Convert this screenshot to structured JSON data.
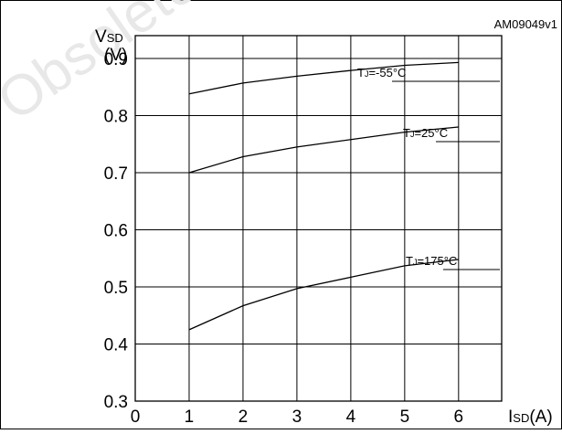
{
  "figure_id": "AM09049v1",
  "watermark": "Obsolete",
  "chart_data": {
    "type": "line",
    "ylabel_main": "V",
    "ylabel_sub": "SD",
    "ylabel_unit": "(V)",
    "xlabel_main": "I",
    "xlabel_sub": "SD",
    "xlabel_unit": "(A)",
    "xlim": [
      0,
      6.8
    ],
    "ylim": [
      0.3,
      0.94
    ],
    "x_ticks": [
      0,
      1,
      2,
      3,
      4,
      5,
      6
    ],
    "y_ticks": [
      0.3,
      0.4,
      0.5,
      0.6,
      0.7,
      0.8,
      0.9
    ],
    "x_tick_labels": [
      "0",
      "1",
      "2",
      "3",
      "4",
      "5",
      "6"
    ],
    "y_tick_labels": [
      "0.3",
      "0.4",
      "0.5",
      "0.6",
      "0.7",
      "0.8",
      "0.9"
    ],
    "grid": true,
    "series": [
      {
        "label_main": "T",
        "label_sub": "J",
        "label_rest": "=-55°C",
        "x": [
          1,
          2,
          3,
          4,
          5,
          6
        ],
        "y": [
          0.838,
          0.857,
          0.869,
          0.879,
          0.888,
          0.893
        ]
      },
      {
        "label_main": "T",
        "label_sub": "J",
        "label_rest": "=25°C",
        "x": [
          1,
          2,
          3,
          4,
          5,
          6
        ],
        "y": [
          0.7,
          0.728,
          0.745,
          0.758,
          0.771,
          0.78
        ]
      },
      {
        "label_main": "T",
        "label_sub": "J",
        "label_rest": "=175°C",
        "x": [
          1,
          2,
          3,
          4,
          5,
          6
        ],
        "y": [
          0.425,
          0.467,
          0.497,
          0.517,
          0.537,
          0.548
        ]
      }
    ]
  }
}
